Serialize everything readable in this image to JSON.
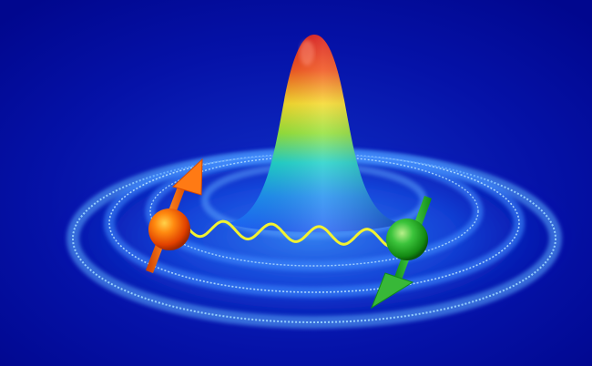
{
  "colors": {
    "background": "#01078e",
    "ring": "#2f8cff",
    "ring_glow": "#9fd8ff",
    "peak_top": "#e01010",
    "peak_mid": "#f0e020",
    "peak_low": "#10c8d8",
    "peak_base": "#1e66ff",
    "particle_left": "#ff5a00",
    "particle_right": "#1ca81c",
    "wave": "#f2f230"
  },
  "icons": {
    "left_particle": "orange-sphere-spin-up-icon",
    "right_particle": "green-sphere-spin-down-icon",
    "link": "wavy-line-icon"
  }
}
